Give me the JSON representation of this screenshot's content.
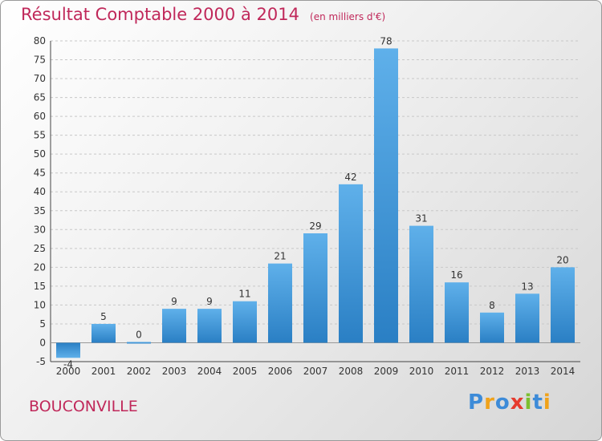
{
  "title": "Résultat Comptable 2000 à 2014",
  "unit": "(en milliers d'€)",
  "commune": "BOUCONVILLE",
  "logo": {
    "letters": [
      {
        "ch": "P",
        "color": "#3d8bd8"
      },
      {
        "ch": "r",
        "color": "#f0a21a"
      },
      {
        "ch": "o",
        "color": "#3d8bd8"
      },
      {
        "ch": "x",
        "color": "#e63b2e"
      },
      {
        "ch": "i",
        "color": "#7cbf2f"
      },
      {
        "ch": "t",
        "color": "#3d8bd8"
      },
      {
        "ch": "i",
        "color": "#f0a21a"
      }
    ]
  },
  "colors": {
    "title": "#c0285a",
    "bar_light": "#5fb0ea",
    "bar_dark": "#2a7fc4"
  },
  "chart_data": {
    "type": "bar",
    "title": "Résultat Comptable 2000 à 2014",
    "subtitle": "(en milliers d'€)",
    "categories": [
      "2000",
      "2001",
      "2002",
      "2003",
      "2004",
      "2005",
      "2006",
      "2007",
      "2008",
      "2009",
      "2010",
      "2011",
      "2012",
      "2013",
      "2014"
    ],
    "values": [
      -4,
      5,
      0,
      9,
      9,
      11,
      21,
      29,
      42,
      78,
      31,
      16,
      8,
      13,
      20
    ],
    "ylim": [
      -5,
      80
    ],
    "yticks": [
      -5,
      0,
      5,
      10,
      15,
      20,
      25,
      30,
      35,
      40,
      45,
      50,
      55,
      60,
      65,
      70,
      75,
      80
    ],
    "grid": true
  }
}
